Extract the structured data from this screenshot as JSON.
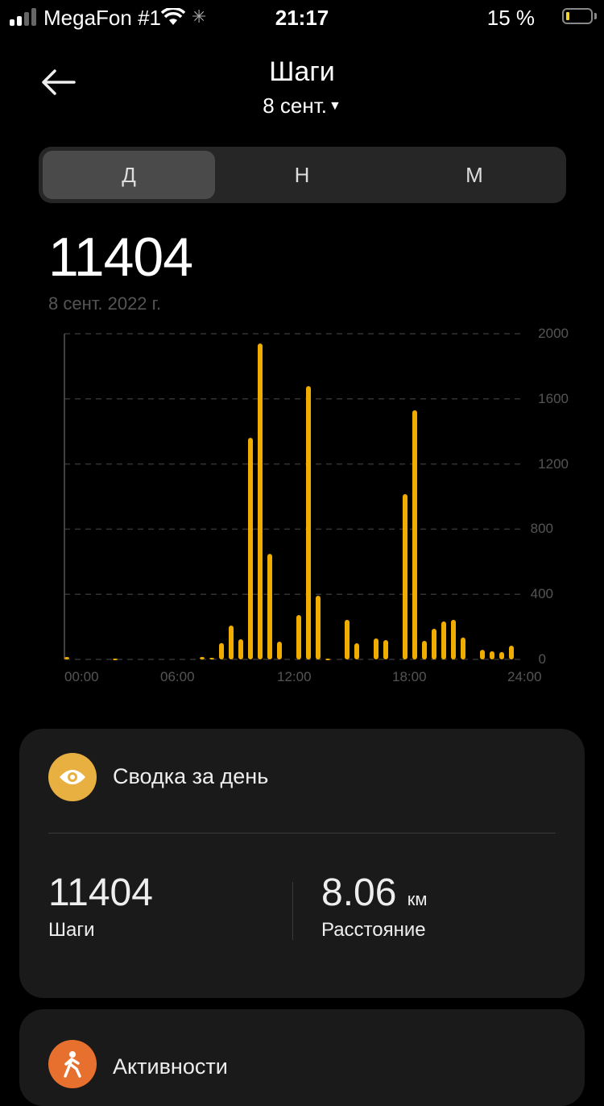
{
  "status_bar": {
    "carrier": "MegaFon #1",
    "time": "21:17",
    "battery": "15 %",
    "battery_level_percent": 15,
    "battery_color": "#f2d22e"
  },
  "header": {
    "title": "Шаги",
    "date_selector": "8 сент."
  },
  "tabs": [
    {
      "label": "Д",
      "active": true
    },
    {
      "label": "Н",
      "active": false
    },
    {
      "label": "М",
      "active": false
    }
  ],
  "summary_top": {
    "steps": "11404",
    "date": "8 сент. 2022 г."
  },
  "chart_data": {
    "type": "bar",
    "bar_color": "#f0ad00",
    "xlabel": "",
    "ylabel": "",
    "ylim": [
      0,
      2000
    ],
    "xlim": [
      "00:00",
      "24:00"
    ],
    "y_ticks": [
      "2000",
      "1600",
      "1200",
      "800",
      "400",
      "0"
    ],
    "x_ticks": [
      "00:00",
      "06:00",
      "12:00",
      "18:00",
      "24:00"
    ],
    "grid": true,
    "bars": [
      {
        "time": "00:00",
        "value": 15
      },
      {
        "time": "02:30",
        "value": 5
      },
      {
        "time": "07:00",
        "value": 15
      },
      {
        "time": "07:30",
        "value": 10
      },
      {
        "time": "08:00",
        "value": 100
      },
      {
        "time": "08:30",
        "value": 208
      },
      {
        "time": "09:00",
        "value": 124
      },
      {
        "time": "09:30",
        "value": 1361
      },
      {
        "time": "10:00",
        "value": 1940
      },
      {
        "time": "10:30",
        "value": 648
      },
      {
        "time": "11:00",
        "value": 109
      },
      {
        "time": "12:00",
        "value": 272
      },
      {
        "time": "12:30",
        "value": 1678
      },
      {
        "time": "13:00",
        "value": 391
      },
      {
        "time": "13:30",
        "value": 5
      },
      {
        "time": "14:30",
        "value": 243
      },
      {
        "time": "15:00",
        "value": 99
      },
      {
        "time": "16:00",
        "value": 129
      },
      {
        "time": "16:30",
        "value": 119
      },
      {
        "time": "17:30",
        "value": 1015
      },
      {
        "time": "18:00",
        "value": 1530
      },
      {
        "time": "18:30",
        "value": 114
      },
      {
        "time": "19:00",
        "value": 188
      },
      {
        "time": "19:30",
        "value": 233
      },
      {
        "time": "20:00",
        "value": 243
      },
      {
        "time": "20:30",
        "value": 134
      },
      {
        "time": "21:30",
        "value": 59
      },
      {
        "time": "22:00",
        "value": 50
      },
      {
        "time": "22:30",
        "value": 45
      },
      {
        "time": "23:00",
        "value": 84
      }
    ]
  },
  "daily_summary": {
    "title": "Сводка за день",
    "icon": "eye-icon",
    "icon_color": "#e8b040",
    "steps_value": "11404",
    "steps_label": "Шаги",
    "distance_value": "8.06",
    "distance_unit": "км",
    "distance_label": "Расстояние"
  },
  "activities": {
    "title": "Активности",
    "icon": "walking-icon",
    "icon_color": "#e8702e"
  }
}
